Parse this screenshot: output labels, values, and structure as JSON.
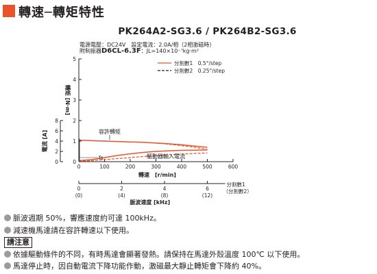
{
  "header": {
    "title": "轉速─轉矩特性"
  },
  "model": "PK264A2-SG3.6 / PK264B2-SG3.6",
  "spec": {
    "line1": "電源電壓：DC24V　設定電流：2.0A/相（2相激磁時）",
    "line2_prefix": "附制振器",
    "line2_model": "D6CL-6.3F",
    "line2_suffix": "：JL=140×10⁻⁷kg·m²"
  },
  "colors": {
    "accent": "#e8532e",
    "curve": "#e8532e",
    "axis": "#231f20",
    "bullet": "#9b9b9b"
  },
  "chart_data": {
    "type": "line",
    "x": {
      "label": "轉速　[r/min]",
      "range": [
        0,
        600
      ],
      "ticks": [
        "0",
        "100",
        "200",
        "300",
        "400",
        "500",
        "600"
      ]
    },
    "y_torque": {
      "label": "轉矩 [N·m]",
      "range": [
        0,
        5
      ],
      "ticks": [
        "0",
        "1",
        "2",
        "3",
        "4",
        "5"
      ]
    },
    "y_current": {
      "label": "電流 [A]",
      "ticks": [
        "0",
        "2",
        "4",
        "6",
        "8"
      ]
    },
    "secondary_x": {
      "label": "脈波速度 [kHz]",
      "ticks_div1": [
        "0",
        "2",
        "4",
        "6"
      ],
      "ticks_div2": [
        "(0)",
        "(4)",
        "(8)",
        "(12)"
      ],
      "legend_div1": "分割數1",
      "legend_div2": "（分割數2）"
    },
    "legend": [
      {
        "name": "分割數1　0.5°/step",
        "style": "solid"
      },
      {
        "name": "分割數2　0.25°/step",
        "style": "dashed"
      }
    ],
    "legend_placement": "top-right",
    "annotations": {
      "allowable_torque": "容許轉矩",
      "driver_current": "驅動器輸入電流",
      "fs": "fs"
    },
    "series": [
      {
        "kind": "torque",
        "style": "solid",
        "x": [
          0,
          50,
          100,
          150,
          200,
          250,
          300,
          350,
          400,
          450,
          500
        ],
        "y": [
          1.05,
          1.02,
          1.0,
          0.98,
          0.96,
          0.94,
          0.91,
          0.87,
          0.82,
          0.76,
          0.7
        ]
      },
      {
        "kind": "torque",
        "style": "dashed",
        "x": [
          0,
          50,
          100,
          150,
          200,
          250,
          300,
          350,
          400,
          450,
          500
        ],
        "y": [
          1.05,
          1.02,
          1.0,
          0.98,
          0.96,
          0.94,
          0.9,
          0.85,
          0.78,
          0.7,
          0.6
        ]
      },
      {
        "kind": "current",
        "style": "solid",
        "x": [
          0,
          50,
          100,
          150,
          200,
          250,
          300,
          350,
          400,
          450,
          500
        ],
        "y": [
          0.05,
          0.1,
          0.2,
          0.3,
          0.38,
          0.45,
          0.5,
          0.53,
          0.55,
          0.56,
          0.57
        ]
      },
      {
        "kind": "current",
        "style": "dashed",
        "x": [
          0,
          50,
          100,
          150,
          200,
          250,
          300,
          350,
          400,
          450,
          500
        ],
        "y": [
          0.03,
          0.05,
          0.1,
          0.15,
          0.2,
          0.25,
          0.3,
          0.34,
          0.37,
          0.4,
          0.42
        ]
      }
    ]
  },
  "notes": {
    "n1": "脈波週期 50%，響應速度約可達 100kHz。",
    "n2": "減速機馬達請在容許轉速以下使用。",
    "caution_label": "請注意",
    "n3": "依據驅動條件的不同，有時馬達會顯著發熱。請保持在馬達外殼溫度 100℃ 以下使用。",
    "n4": "馬達停止時，因自動電流下降功能作動，激磁最大靜止轉矩會下降約 40%。"
  }
}
